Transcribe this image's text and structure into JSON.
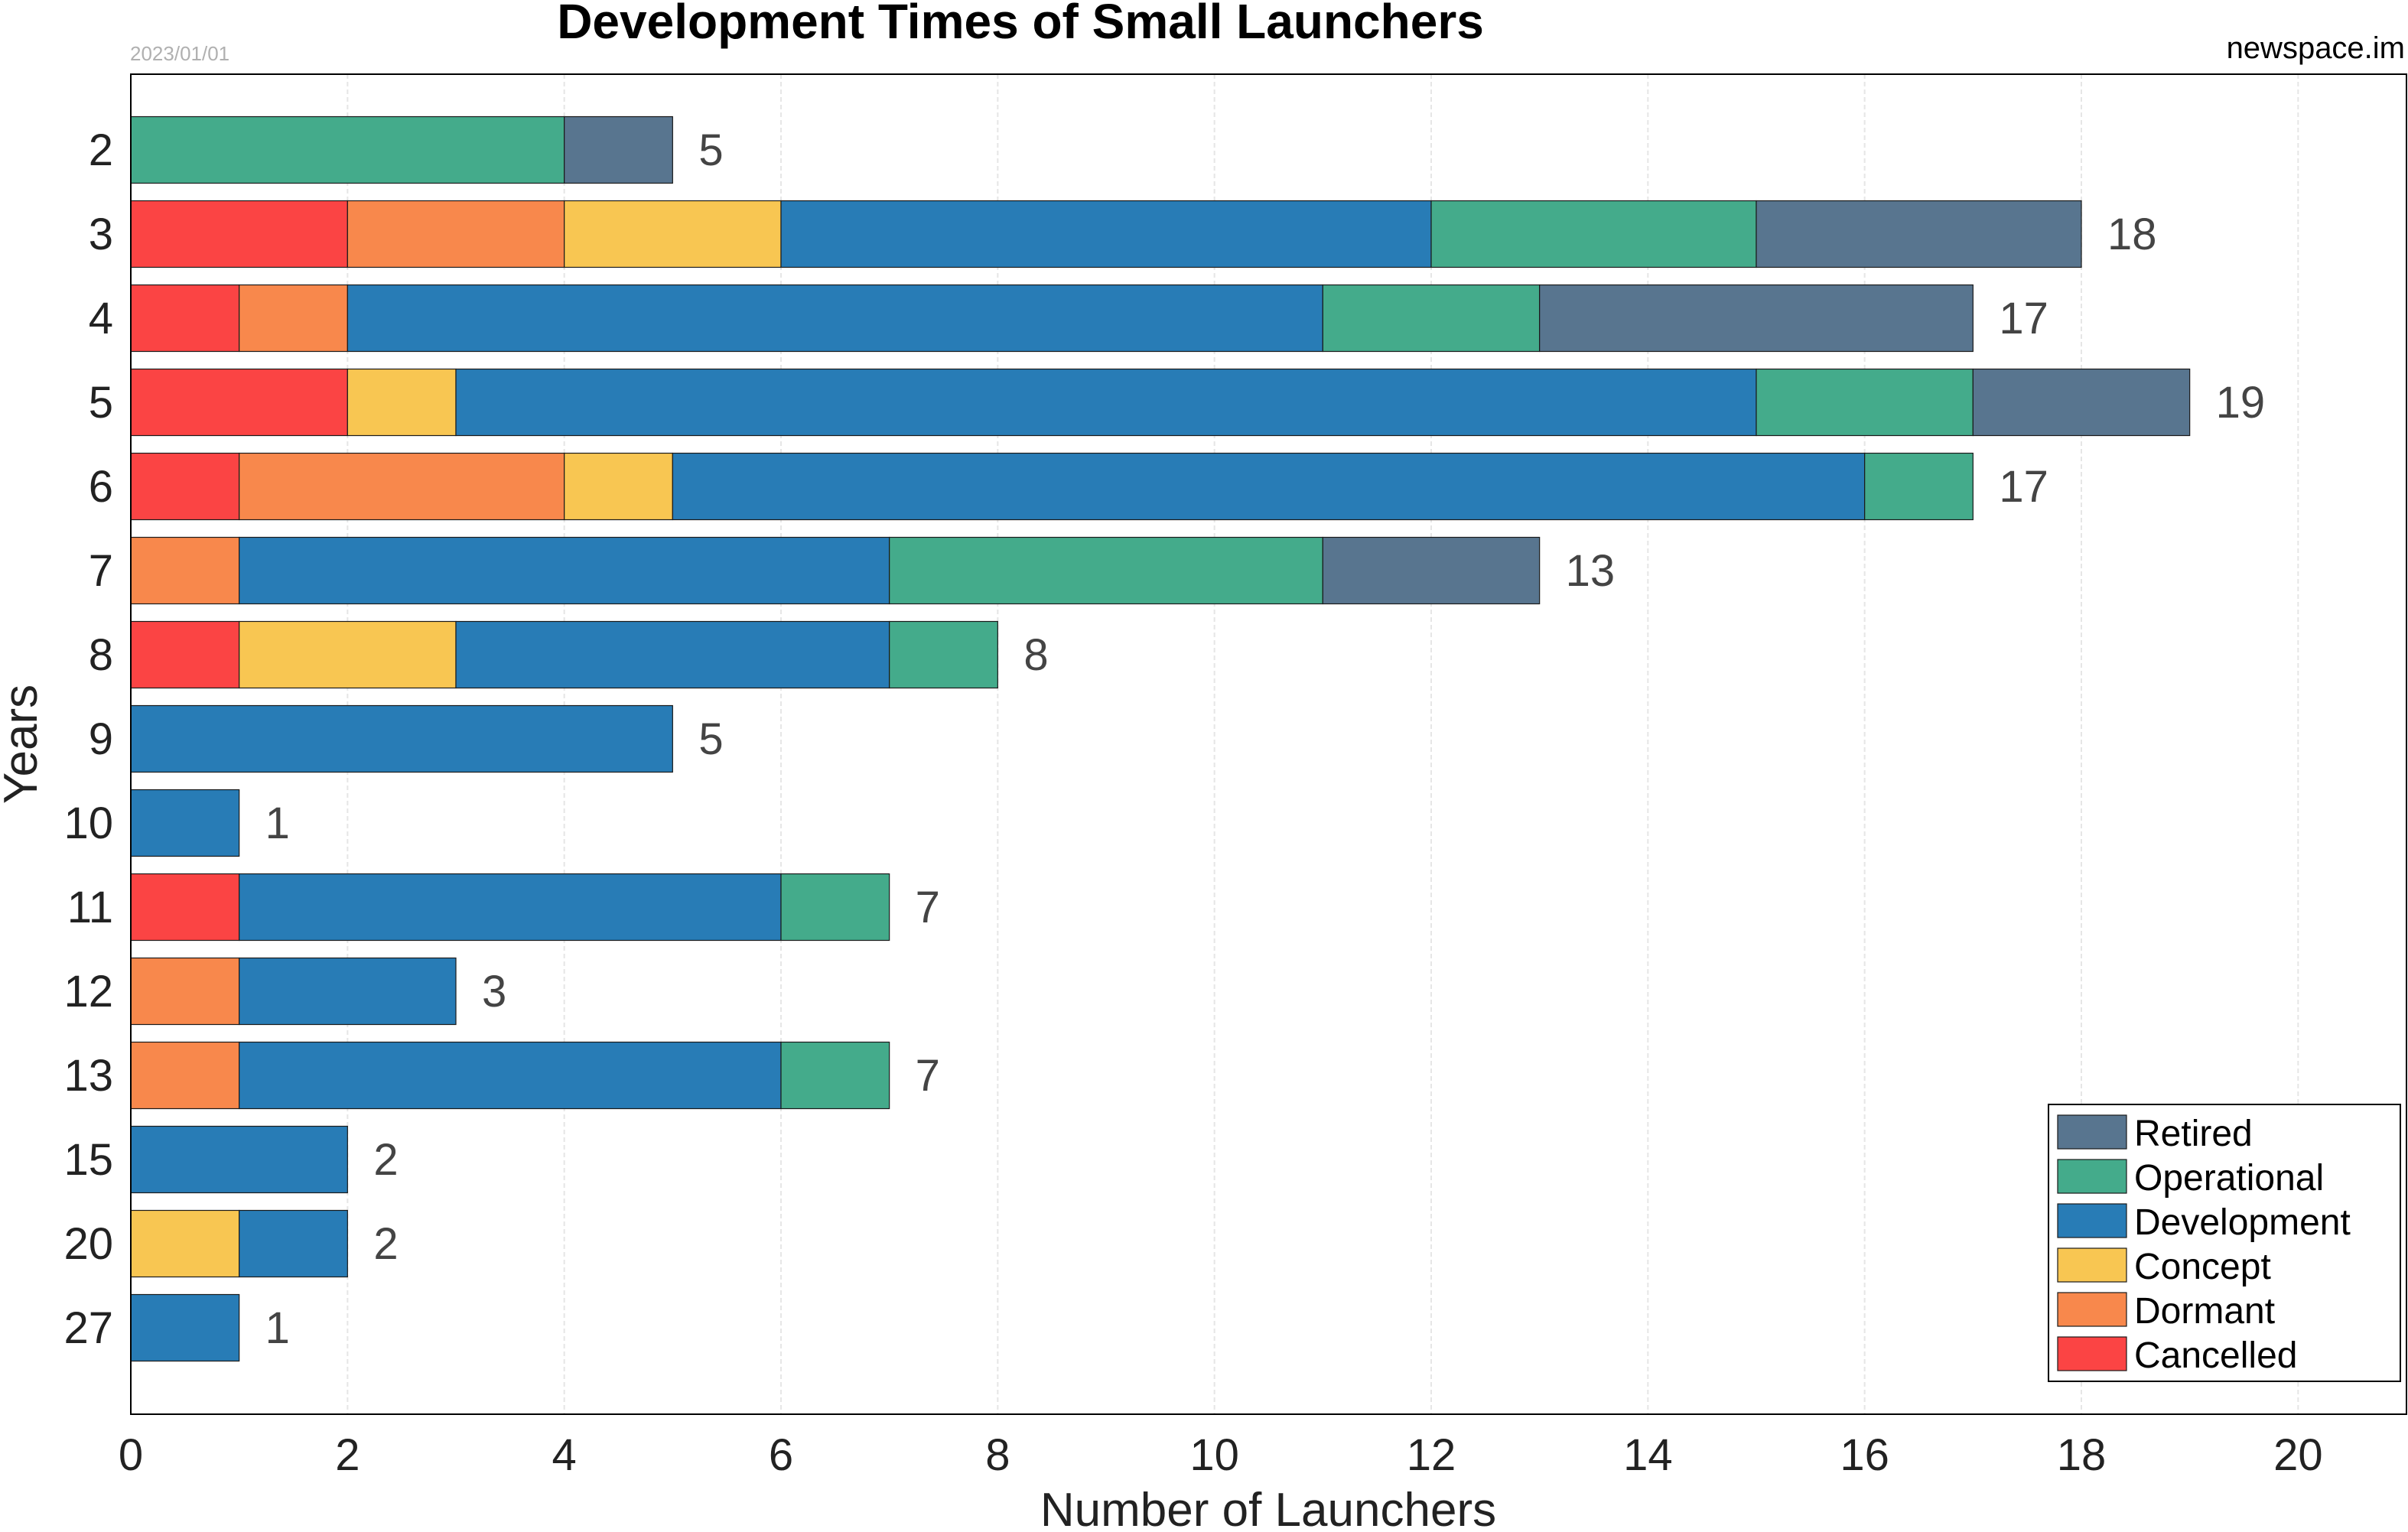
{
  "chart_data": {
    "type": "bar",
    "orientation": "horizontal",
    "stacked": true,
    "title": "Development Times of Small Launchers",
    "date": "2023/01/01",
    "source": "newspace.im",
    "xlabel": "Number of Launchers",
    "ylabel": "Years",
    "xlim": [
      0,
      21
    ],
    "xticks": [
      0,
      2,
      4,
      6,
      8,
      10,
      12,
      14,
      16,
      18,
      20
    ],
    "grid": "vertical",
    "legend_position": "bottom-right",
    "categories": [
      "2",
      "3",
      "4",
      "5",
      "6",
      "7",
      "8",
      "9",
      "10",
      "11",
      "12",
      "13",
      "15",
      "20",
      "27"
    ],
    "series": [
      {
        "name": "Cancelled",
        "color": "#fb4444",
        "values": [
          0,
          2,
          1,
          2,
          1,
          0,
          1,
          0,
          0,
          1,
          0,
          0,
          0,
          0,
          0
        ]
      },
      {
        "name": "Dormant",
        "color": "#f8884c",
        "values": [
          0,
          2,
          1,
          0,
          3,
          1,
          0,
          0,
          0,
          0,
          1,
          1,
          0,
          0,
          0
        ]
      },
      {
        "name": "Concept",
        "color": "#f8c652",
        "values": [
          0,
          2,
          0,
          1,
          1,
          0,
          2,
          0,
          0,
          0,
          0,
          0,
          0,
          1,
          0
        ]
      },
      {
        "name": "Development",
        "color": "#287cb6",
        "values": [
          0,
          6,
          9,
          12,
          11,
          6,
          4,
          5,
          1,
          5,
          2,
          5,
          2,
          1,
          1
        ]
      },
      {
        "name": "Operational",
        "color": "#44ab8b",
        "values": [
          4,
          3,
          2,
          2,
          1,
          4,
          1,
          0,
          0,
          1,
          0,
          1,
          0,
          0,
          0
        ]
      },
      {
        "name": "Retired",
        "color": "#58758f",
        "values": [
          1,
          3,
          4,
          2,
          0,
          2,
          0,
          0,
          0,
          0,
          0,
          0,
          0,
          0,
          0
        ]
      }
    ],
    "totals": [
      5,
      18,
      17,
      19,
      17,
      13,
      8,
      5,
      1,
      7,
      3,
      7,
      2,
      2,
      1
    ],
    "legend_order": [
      "Retired",
      "Operational",
      "Development",
      "Concept",
      "Dormant",
      "Cancelled"
    ]
  }
}
